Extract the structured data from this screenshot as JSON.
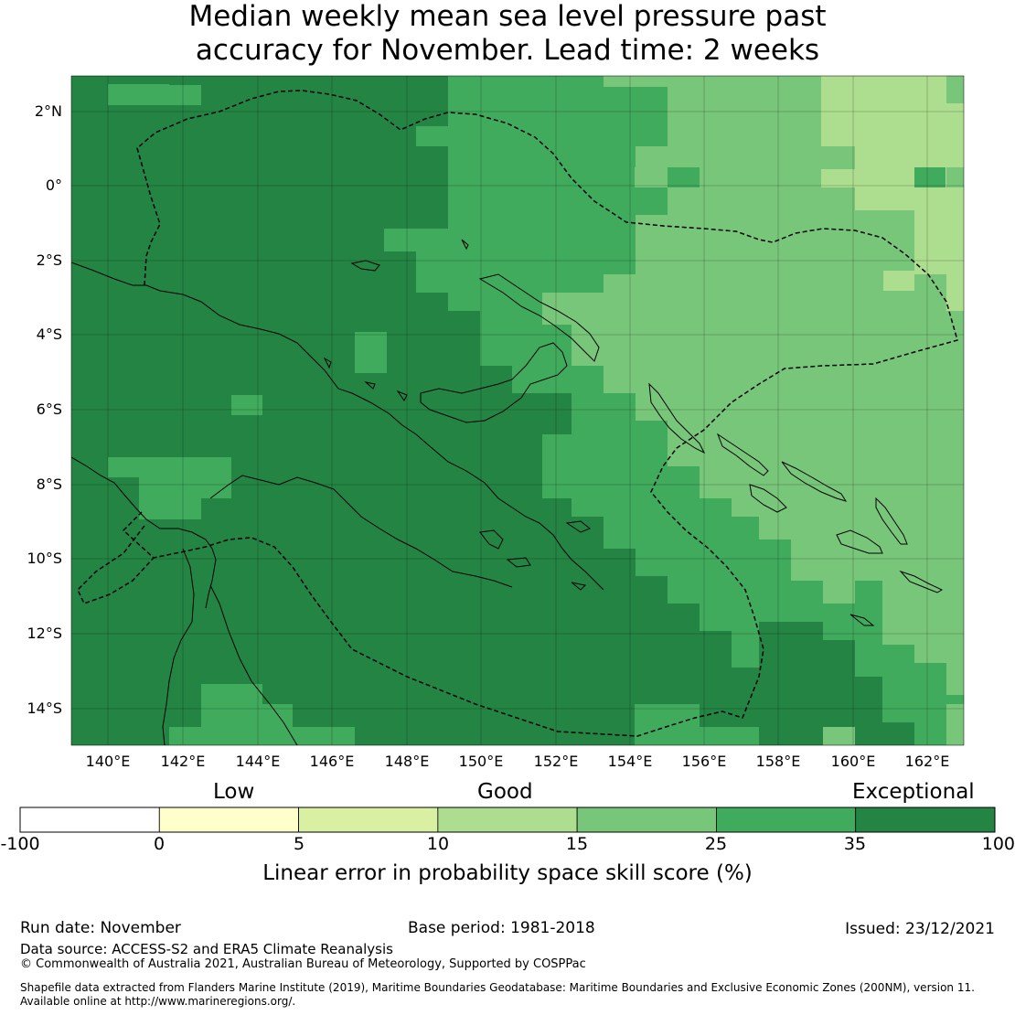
{
  "title": {
    "line1": "Median weekly mean sea level pressure past",
    "line2": "accuracy for November. Lead time: 2 weeks"
  },
  "map": {
    "lat_labels": [
      "2°N",
      "0°",
      "2°S",
      "4°S",
      "6°S",
      "8°S",
      "10°S",
      "12°S",
      "14°S"
    ],
    "lon_labels": [
      "140°E",
      "142°E",
      "144°E",
      "146°E",
      "148°E",
      "150°E",
      "152°E",
      "154°E",
      "156°E",
      "158°E",
      "160°E",
      "162°E"
    ],
    "lon_range": [
      139,
      163
    ],
    "lat_range": [
      -15,
      3
    ],
    "grid": "on",
    "coastline_color": "#000000",
    "boundary_style": "dashed"
  },
  "legend": {
    "categories": [
      {
        "label": "Low",
        "range": [
          0,
          10
        ]
      },
      {
        "label": "Good",
        "range": [
          10,
          25
        ]
      },
      {
        "label": "Exceptional",
        "range": [
          35,
          100
        ]
      }
    ],
    "ticks": [
      "-100",
      "0",
      "5",
      "10",
      "15",
      "25",
      "35",
      "100"
    ],
    "bins": [
      {
        "from": -100,
        "to": 0,
        "color": "#ffffff"
      },
      {
        "from": 0,
        "to": 5,
        "color": "#ffffcc"
      },
      {
        "from": 5,
        "to": 10,
        "color": "#d9f0a3"
      },
      {
        "from": 10,
        "to": 15,
        "color": "#addd8e"
      },
      {
        "from": 15,
        "to": 25,
        "color": "#78c679"
      },
      {
        "from": 25,
        "to": 35,
        "color": "#41ab5d"
      },
      {
        "from": 35,
        "to": 100,
        "color": "#238443"
      }
    ],
    "title": "Linear error in probability space skill score (%)"
  },
  "footer": {
    "run_date": "Run date: November",
    "base_period": "Base period: 1981-2018",
    "issued": "Issued: 23/12/2021",
    "data_source": "Data source: ACCESS-S2 and ERA5 Climate Reanalysis",
    "copyright": "© Commonwealth of Australia 2021, Australian Bureau of Meteorology, Supported by COSPPac",
    "shapefile_1": "Shapefile data extracted from Flanders Marine Institute (2019), Maritime Boundaries Geodatabase: Maritime Boundaries and Exclusive Economic Zones (200NM), version 11.",
    "shapefile_2": "Available online at http://www.marineregions.org/."
  }
}
